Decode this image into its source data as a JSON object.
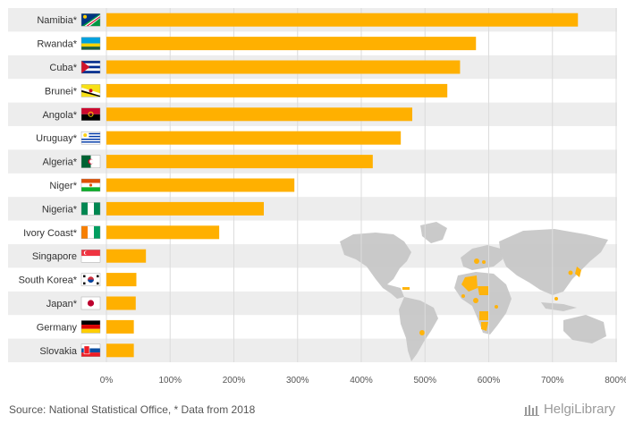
{
  "chart_data": {
    "type": "bar",
    "orientation": "horizontal",
    "categories": [
      "Namibia*",
      "Rwanda*",
      "Cuba*",
      "Brunei*",
      "Angola*",
      "Uruguay*",
      "Algeria*",
      "Niger*",
      "Nigeria*",
      "Ivory Coast*",
      "Singapore",
      "South Korea*",
      "Japan*",
      "Germany",
      "Slovakia"
    ],
    "values": [
      740,
      580,
      555,
      535,
      480,
      462,
      418,
      295,
      247,
      177,
      62,
      47,
      46,
      43,
      43
    ],
    "xlim": [
      0,
      800
    ],
    "xticks": [
      "0%",
      "100%",
      "200%",
      "300%",
      "400%",
      "500%",
      "600%",
      "700%",
      "800%"
    ],
    "grid": true,
    "bar_color": "#FFB000",
    "band_color": "#EDEDED",
    "flags": [
      "namibia",
      "rwanda",
      "cuba",
      "brunei",
      "angola",
      "uruguay",
      "algeria",
      "niger",
      "nigeria",
      "ivory-coast",
      "singapore",
      "south-korea",
      "japan",
      "germany",
      "slovakia"
    ]
  },
  "footer": {
    "source": "Source: National Statistical Office, * Data from 2018",
    "brand": "HelgiLibrary"
  }
}
